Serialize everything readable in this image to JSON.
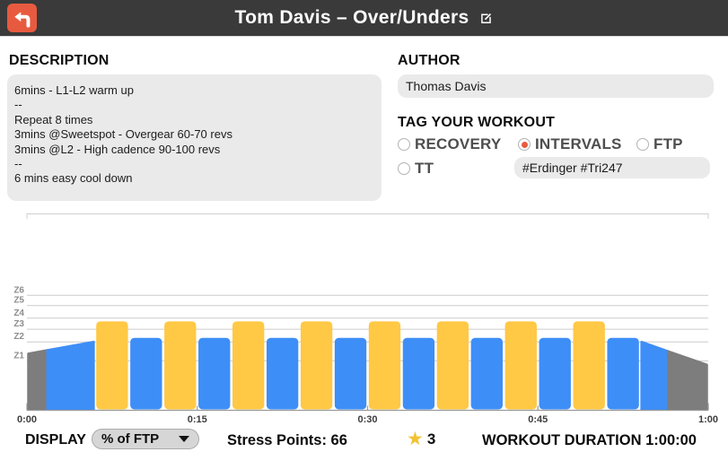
{
  "header": {
    "title": "Tom Davis – Over/Unders"
  },
  "description": {
    "heading": "DESCRIPTION",
    "text": "6mins - L1-L2 warm up\n--\nRepeat 8 times\n3mins @Sweetspot - Overgear 60-70 revs\n3mins @L2 - High cadence 90-100 revs\n--\n6 mins easy cool down"
  },
  "author": {
    "heading": "AUTHOR",
    "value": "Thomas Davis"
  },
  "tags": {
    "heading": "TAG YOUR WORKOUT",
    "options": [
      {
        "label": "RECOVERY",
        "selected": false
      },
      {
        "label": "INTERVALS",
        "selected": true
      },
      {
        "label": "FTP",
        "selected": false
      },
      {
        "label": "TT",
        "selected": false
      }
    ],
    "hashtags": "#Erdinger #Tri247"
  },
  "chart_data": {
    "type": "area",
    "title": "",
    "x_axis": {
      "ticks": [
        {
          "label": "0:00",
          "min": 0
        },
        {
          "label": "0:15",
          "min": 15
        },
        {
          "label": "0:30",
          "min": 30
        },
        {
          "label": "0:45",
          "min": 45
        },
        {
          "label": "1:00",
          "min": 60
        }
      ],
      "range_min": [
        0,
        60
      ]
    },
    "y_axis": {
      "unit": "% of FTP",
      "zones": [
        {
          "label": "Z6",
          "boundary_pct": 119
        },
        {
          "label": "Z5",
          "boundary_pct": 106
        },
        {
          "label": "Z4",
          "boundary_pct": 90
        },
        {
          "label": "Z3",
          "boundary_pct": 76
        },
        {
          "label": "Z2",
          "boundary_pct": 60
        },
        {
          "label": "Z1",
          "boundary_pct": 36
        }
      ],
      "ylim_pct": [
        0,
        130
      ],
      "grid": true
    },
    "colors": {
      "yellow": "#FFC845",
      "blue": "#3E8EF7",
      "gray": "#7D7D7D"
    },
    "segments": [
      {
        "kind": "ramp",
        "start_min": 0,
        "end_min": 6,
        "start_pct": 45,
        "end_pct": 60,
        "colors": [
          "gray",
          "blue"
        ],
        "split_frac": 0.3
      },
      {
        "kind": "steady",
        "start_min": 6,
        "end_min": 9,
        "pct": 86,
        "color": "yellow"
      },
      {
        "kind": "steady",
        "start_min": 9,
        "end_min": 12,
        "pct": 65,
        "color": "blue"
      },
      {
        "kind": "steady",
        "start_min": 12,
        "end_min": 15,
        "pct": 86,
        "color": "yellow"
      },
      {
        "kind": "steady",
        "start_min": 15,
        "end_min": 18,
        "pct": 65,
        "color": "blue"
      },
      {
        "kind": "steady",
        "start_min": 18,
        "end_min": 21,
        "pct": 86,
        "color": "yellow"
      },
      {
        "kind": "steady",
        "start_min": 21,
        "end_min": 24,
        "pct": 65,
        "color": "blue"
      },
      {
        "kind": "steady",
        "start_min": 24,
        "end_min": 27,
        "pct": 86,
        "color": "yellow"
      },
      {
        "kind": "steady",
        "start_min": 27,
        "end_min": 30,
        "pct": 65,
        "color": "blue"
      },
      {
        "kind": "steady",
        "start_min": 30,
        "end_min": 33,
        "pct": 86,
        "color": "yellow"
      },
      {
        "kind": "steady",
        "start_min": 33,
        "end_min": 36,
        "pct": 65,
        "color": "blue"
      },
      {
        "kind": "steady",
        "start_min": 36,
        "end_min": 39,
        "pct": 86,
        "color": "yellow"
      },
      {
        "kind": "steady",
        "start_min": 39,
        "end_min": 42,
        "pct": 65,
        "color": "blue"
      },
      {
        "kind": "steady",
        "start_min": 42,
        "end_min": 45,
        "pct": 86,
        "color": "yellow"
      },
      {
        "kind": "steady",
        "start_min": 45,
        "end_min": 48,
        "pct": 65,
        "color": "blue"
      },
      {
        "kind": "steady",
        "start_min": 48,
        "end_min": 51,
        "pct": 86,
        "color": "yellow"
      },
      {
        "kind": "steady",
        "start_min": 51,
        "end_min": 54,
        "pct": 65,
        "color": "blue"
      },
      {
        "kind": "ramp",
        "start_min": 54,
        "end_min": 60,
        "start_pct": 60,
        "end_pct": 31,
        "colors": [
          "blue",
          "gray"
        ],
        "split_frac": 0.41
      }
    ]
  },
  "footer": {
    "display_label": "DISPLAY",
    "display_value": "% of FTP",
    "stress_points_label": "Stress Points:",
    "stress_points_value": "66",
    "rating": {
      "star_icon": "★",
      "value": "3"
    },
    "duration_label": "WORKOUT DURATION",
    "duration_value": "1:00:00"
  }
}
